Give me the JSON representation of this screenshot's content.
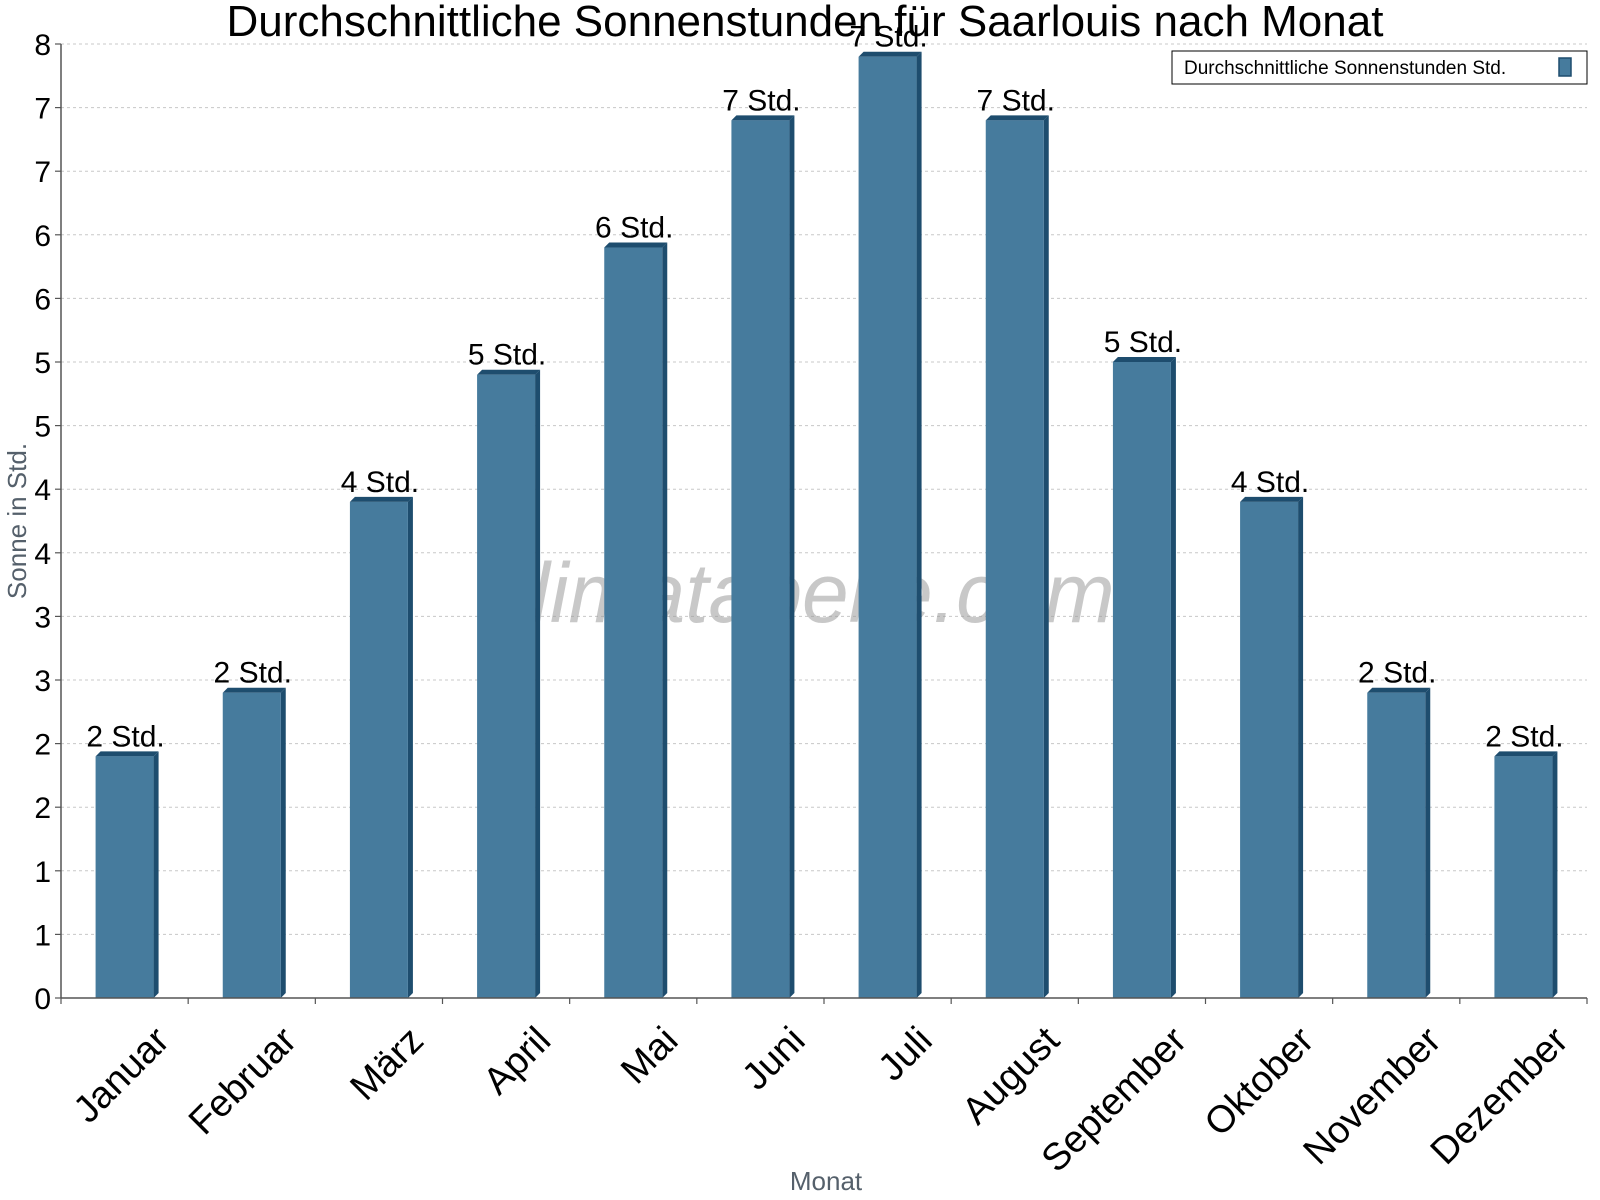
{
  "chart_data": {
    "type": "bar",
    "title": "Durchschnittliche Sonnenstunden für Saarlouis nach Monat",
    "xlabel": "Monat",
    "ylabel": "Sonne in Std.",
    "categories": [
      "Januar",
      "Februar",
      "März",
      "April",
      "Mai",
      "Juni",
      "Juli",
      "August",
      "September",
      "Oktober",
      "November",
      "Dezember"
    ],
    "series": [
      {
        "name": "Durchschnittliche Sonnenstunden Std.",
        "values": [
          1.9,
          2.4,
          3.9,
          4.9,
          5.9,
          6.9,
          7.4,
          6.9,
          5.0,
          3.9,
          2.4,
          1.9
        ],
        "labels": [
          "2 Std.",
          "2 Std.",
          "4 Std.",
          "5 Std.",
          "6 Std.",
          "7 Std.",
          "7 Std.",
          "7 Std.",
          "5 Std.",
          "4 Std.",
          "2 Std.",
          "2 Std."
        ],
        "color": "#467b9d"
      }
    ],
    "ylim": [
      0,
      7.5
    ],
    "yticks": [
      0,
      0.5,
      1,
      1.5,
      2,
      2.5,
      3,
      3.5,
      4,
      4.5,
      5,
      5.5,
      6,
      6.5,
      7,
      7.5
    ],
    "ytick_labels": [
      "0",
      "1",
      "1",
      "2",
      "2",
      "3",
      "3",
      "4",
      "4",
      "5",
      "5",
      "6",
      "6",
      "7",
      "7",
      "8"
    ],
    "grid": true,
    "legend_position": "top-right",
    "watermark": "klimatabelle.com",
    "colors": {
      "bar_face": "#467b9d",
      "bar_side": "#1e4d6e",
      "bar_top": "#1e4d6e"
    }
  }
}
